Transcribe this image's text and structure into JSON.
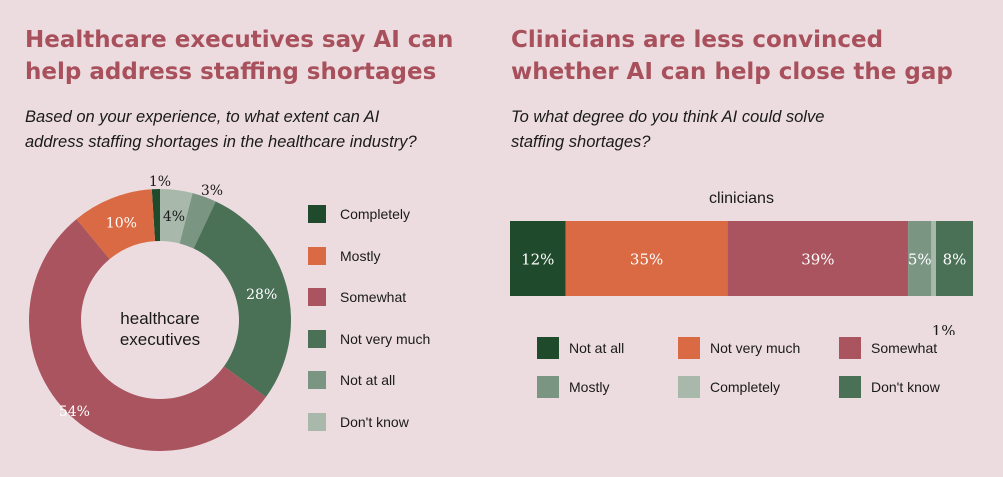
{
  "left": {
    "title_line1": "Healthcare executives say AI can",
    "title_line2": "help address staffing shortages",
    "subtitle_line1": "Based on your experience, to what extent can AI",
    "subtitle_line2": "address staffing shortages in the healthcare industry?"
  },
  "right": {
    "title_line1": "Clinicians are less convinced",
    "title_line2": "whether AI can help close the gap",
    "subtitle_line1": "To what degree do you think AI could solve",
    "subtitle_line2": "staffing shortages?"
  },
  "chart_data": [
    {
      "type": "pie",
      "variant": "donut",
      "center_label_line1": "healthcare",
      "center_label_line2": "executives",
      "slices": [
        {
          "name": "Completely",
          "value": 1,
          "label": "1%",
          "color": "#1f4a2c"
        },
        {
          "name": "Don't know",
          "value": 4,
          "label": "4%",
          "color": "#a8b9ac"
        },
        {
          "name": "Not at all",
          "value": 3,
          "label": "3%",
          "color": "#7b9583"
        },
        {
          "name": "Not very much",
          "value": 28,
          "label": "28%",
          "color": "#4a7056"
        },
        {
          "name": "Somewhat",
          "value": 54,
          "label": "54%",
          "color": "#a9545f"
        },
        {
          "name": "Mostly",
          "value": 10,
          "label": "10%",
          "color": "#d96a43"
        }
      ],
      "legend": [
        {
          "name": "Completely",
          "color": "#1f4a2c"
        },
        {
          "name": "Mostly",
          "color": "#d96a43"
        },
        {
          "name": "Somewhat",
          "color": "#a9545f"
        },
        {
          "name": "Not very much",
          "color": "#4a7056"
        },
        {
          "name": "Not at all",
          "color": "#7b9583"
        },
        {
          "name": "Don't know",
          "color": "#a8b9ac"
        }
      ],
      "legend_placement": "right"
    },
    {
      "type": "bar",
      "orientation": "horizontal-stacked",
      "category": "clinicians",
      "segments": [
        {
          "name": "Not at all",
          "value": 12,
          "label": "12%",
          "color": "#1f4a2c"
        },
        {
          "name": "Not very much",
          "value": 35,
          "label": "35%",
          "color": "#d96a43"
        },
        {
          "name": "Somewhat",
          "value": 39,
          "label": "39%",
          "color": "#a9545f"
        },
        {
          "name": "Mostly",
          "value": 5,
          "label": "5%",
          "color": "#7b9583"
        },
        {
          "name": "Completely",
          "value": 1,
          "label": "1%",
          "color": "#a8b9ac"
        },
        {
          "name": "Don't know",
          "value": 8,
          "label": "8%",
          "color": "#4a7056"
        }
      ],
      "legend": [
        {
          "name": "Not at all",
          "color": "#1f4a2c"
        },
        {
          "name": "Not very much",
          "color": "#d96a43"
        },
        {
          "name": "Somewhat",
          "color": "#a9545f"
        },
        {
          "name": "Mostly",
          "color": "#7b9583"
        },
        {
          "name": "Completely",
          "color": "#a8b9ac"
        },
        {
          "name": "Don't know",
          "color": "#4a7056"
        }
      ],
      "legend_placement": "bottom"
    }
  ]
}
